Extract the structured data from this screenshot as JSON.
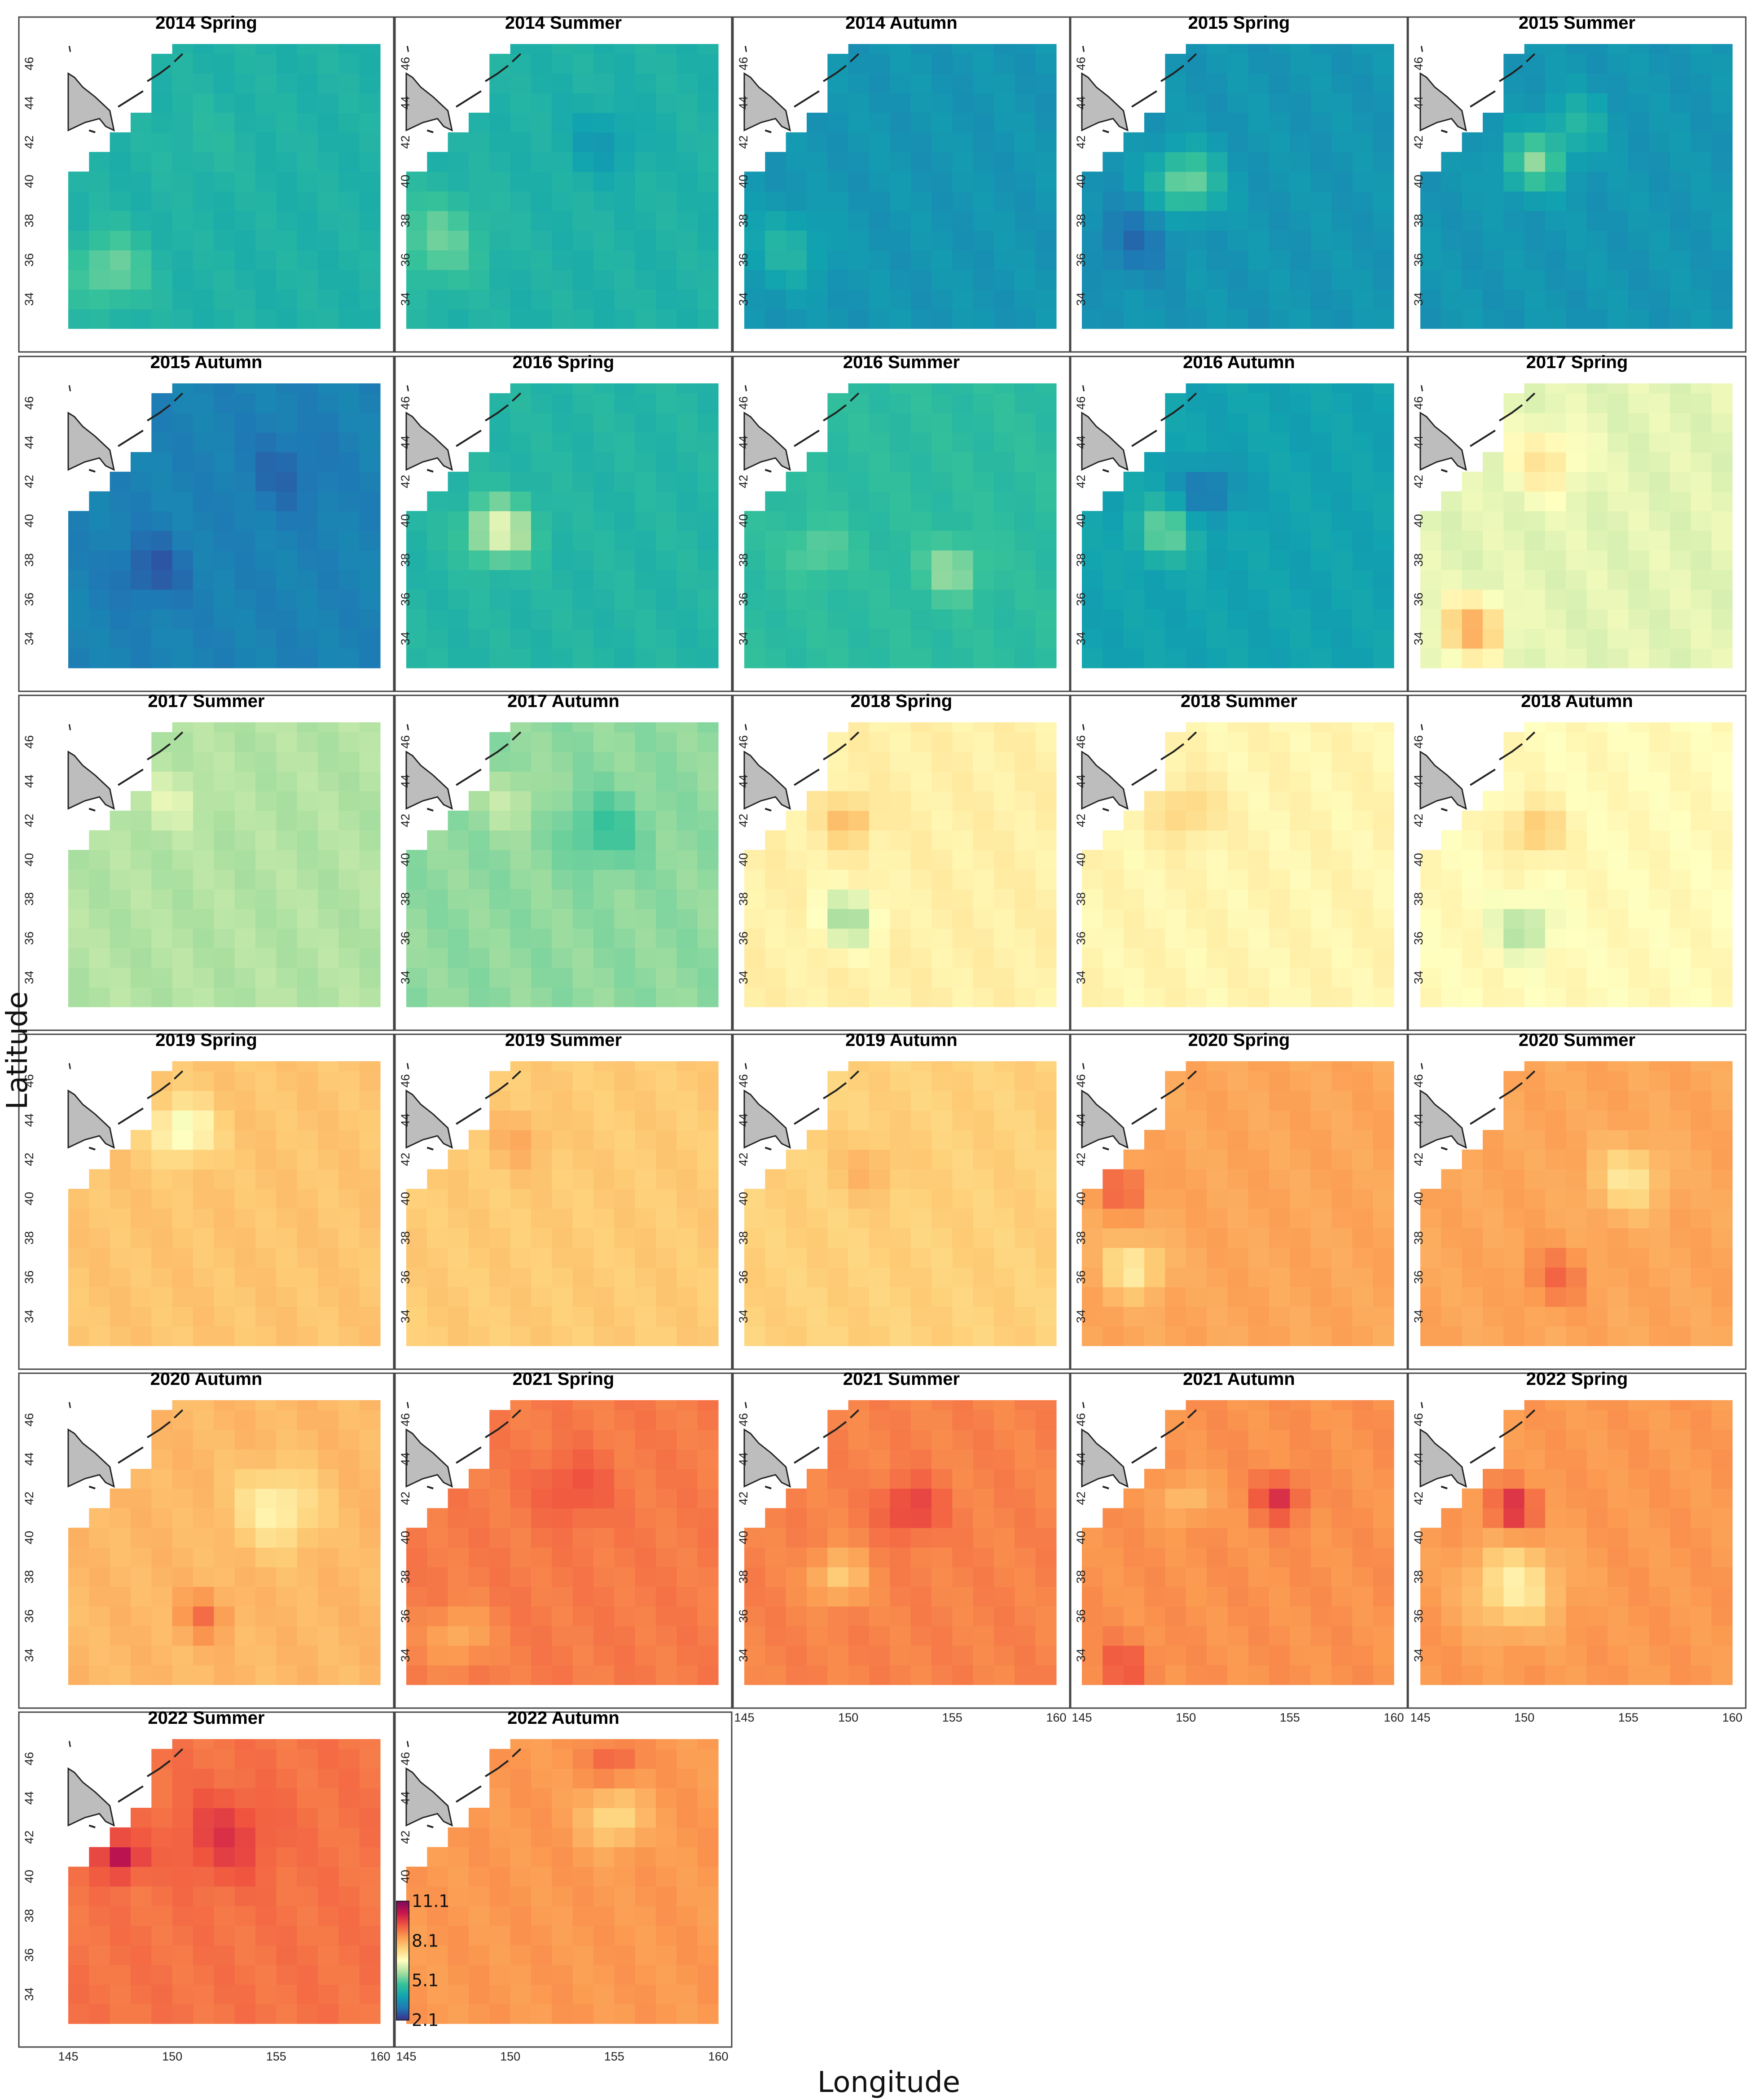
{
  "chart_data": {
    "type": "heatmap",
    "xlabel": "Longitude",
    "ylabel": "Latitude",
    "x_ticks": [
      145,
      150,
      155,
      160
    ],
    "y_ticks": [
      34,
      36,
      38,
      40,
      42,
      44,
      46
    ],
    "xlim": [
      145,
      160
    ],
    "ylim": [
      32.5,
      47
    ],
    "colorbar": {
      "min": 2.1,
      "max": 11.1,
      "ticks": [
        2.1,
        5.1,
        8.1,
        11.1
      ],
      "colors": [
        "#3b2f8f",
        "#1f78b4",
        "#11a3b0",
        "#35c29a",
        "#a9dfa0",
        "#ffffc0",
        "#fed17a",
        "#fb9a50",
        "#f0553f",
        "#c9154d",
        "#7d0a5c"
      ]
    },
    "panels": [
      {
        "title": "2014 Spring",
        "base": 4.3,
        "spots": [
          [
            147.0,
            35.5,
            1.0,
            1.3
          ],
          [
            151.5,
            42.0,
            0.2,
            1.5
          ]
        ]
      },
      {
        "title": "2014 Summer",
        "base": 4.3,
        "spots": [
          [
            146.5,
            37.0,
            0.9,
            1.6
          ],
          [
            154.5,
            42.0,
            -0.6,
            1.2
          ]
        ]
      },
      {
        "title": "2014 Autumn",
        "base": 3.6,
        "spots": [
          [
            147.0,
            36.5,
            0.8,
            1.3
          ]
        ]
      },
      {
        "title": "2015 Spring",
        "base": 3.6,
        "spots": [
          [
            150.0,
            40.0,
            1.8,
            1.1
          ],
          [
            147.5,
            37.0,
            -0.7,
            1.3
          ]
        ]
      },
      {
        "title": "2015 Summer",
        "base": 3.6,
        "spots": [
          [
            150.5,
            41.0,
            1.8,
            1.0
          ],
          [
            152.5,
            43.0,
            0.8,
            1.0
          ]
        ]
      },
      {
        "title": "2015 Autumn",
        "base": 3.2,
        "spots": [
          [
            149.0,
            37.5,
            -0.6,
            1.2
          ],
          [
            155.5,
            42.5,
            -0.4,
            1.5
          ]
        ]
      },
      {
        "title": "2016 Spring",
        "base": 4.4,
        "spots": [
          [
            149.5,
            39.5,
            2.0,
            1.1
          ]
        ]
      },
      {
        "title": "2016 Summer",
        "base": 4.6,
        "spots": [
          [
            155.0,
            37.5,
            1.0,
            1.0
          ],
          [
            148.5,
            38.5,
            0.6,
            1.0
          ]
        ]
      },
      {
        "title": "2016 Autumn",
        "base": 3.9,
        "spots": [
          [
            149.0,
            39.5,
            1.4,
            1.0
          ],
          [
            151.0,
            41.5,
            -1.0,
            1.0
          ]
        ]
      },
      {
        "title": "2017 Spring",
        "base": 6.3,
        "spots": [
          [
            147.5,
            34.5,
            1.8,
            1.0
          ],
          [
            151.0,
            43.0,
            0.8,
            1.2
          ]
        ]
      },
      {
        "title": "2017 Summer",
        "base": 5.8,
        "spots": [
          [
            150.0,
            43.0,
            0.5,
            1.0
          ]
        ]
      },
      {
        "title": "2017 Autumn",
        "base": 5.5,
        "spots": [
          [
            154.5,
            41.5,
            -0.7,
            1.3
          ],
          [
            150.0,
            43.0,
            0.5,
            1.0
          ]
        ]
      },
      {
        "title": "2018 Spring",
        "base": 6.9,
        "spots": [
          [
            150.0,
            37.0,
            -1.2,
            1.0
          ],
          [
            150.0,
            42.0,
            1.0,
            0.8
          ]
        ]
      },
      {
        "title": "2018 Summer",
        "base": 6.8,
        "spots": [
          [
            150.0,
            42.5,
            0.7,
            1.0
          ]
        ]
      },
      {
        "title": "2018 Autumn",
        "base": 6.7,
        "spots": [
          [
            150.5,
            41.5,
            1.0,
            0.9
          ],
          [
            150.0,
            36.5,
            -1.0,
            0.9
          ]
        ]
      },
      {
        "title": "2019 Spring",
        "base": 7.7,
        "spots": [
          [
            150.5,
            43.5,
            -1.4,
            1.0
          ]
        ]
      },
      {
        "title": "2019 Summer",
        "base": 7.6,
        "spots": [
          [
            150.5,
            43.0,
            0.5,
            1.0
          ]
        ]
      },
      {
        "title": "2019 Autumn",
        "base": 7.5,
        "spots": [
          [
            151.0,
            41.5,
            0.5,
            1.0
          ]
        ]
      },
      {
        "title": "2020 Spring",
        "base": 8.2,
        "spots": [
          [
            147.5,
            36.5,
            -1.3,
            1.0
          ],
          [
            147.0,
            40.5,
            1.0,
            0.8
          ]
        ]
      },
      {
        "title": "2020 Summer",
        "base": 8.2,
        "spots": [
          [
            155.0,
            41.0,
            -1.1,
            1.2
          ],
          [
            151.5,
            36.0,
            0.8,
            1.0
          ]
        ]
      },
      {
        "title": "2020 Autumn",
        "base": 7.9,
        "spots": [
          [
            155.0,
            41.5,
            -1.1,
            1.4
          ],
          [
            151.5,
            36.0,
            1.0,
            0.8
          ]
        ]
      },
      {
        "title": "2021 Spring",
        "base": 8.8,
        "spots": [
          [
            153.0,
            42.5,
            0.6,
            1.2
          ],
          [
            147.5,
            35.0,
            -0.8,
            1.0
          ]
        ]
      },
      {
        "title": "2021 Summer",
        "base": 8.7,
        "spots": [
          [
            153.0,
            41.5,
            1.0,
            1.0
          ],
          [
            149.5,
            38.0,
            -1.2,
            0.9
          ]
        ]
      },
      {
        "title": "2021 Autumn",
        "base": 8.5,
        "spots": [
          [
            154.5,
            42.0,
            1.3,
            0.8
          ],
          [
            147.0,
            33.5,
            0.8,
            0.9
          ],
          [
            150.0,
            42.0,
            -0.8,
            0.8
          ]
        ]
      },
      {
        "title": "2022 Spring",
        "base": 8.4,
        "spots": [
          [
            149.5,
            41.5,
            1.5,
            0.8
          ],
          [
            149.5,
            37.5,
            -1.5,
            1.5
          ]
        ]
      },
      {
        "title": "2022 Summer",
        "base": 8.9,
        "spots": [
          [
            147.5,
            41.0,
            1.6,
            0.7
          ],
          [
            152.5,
            42.0,
            0.8,
            1.5
          ]
        ]
      },
      {
        "title": "2022 Autumn",
        "base": 8.4,
        "spots": [
          [
            155.0,
            43.0,
            -1.2,
            1.0
          ],
          [
            155.0,
            46.0,
            0.8,
            0.8
          ]
        ]
      }
    ]
  }
}
